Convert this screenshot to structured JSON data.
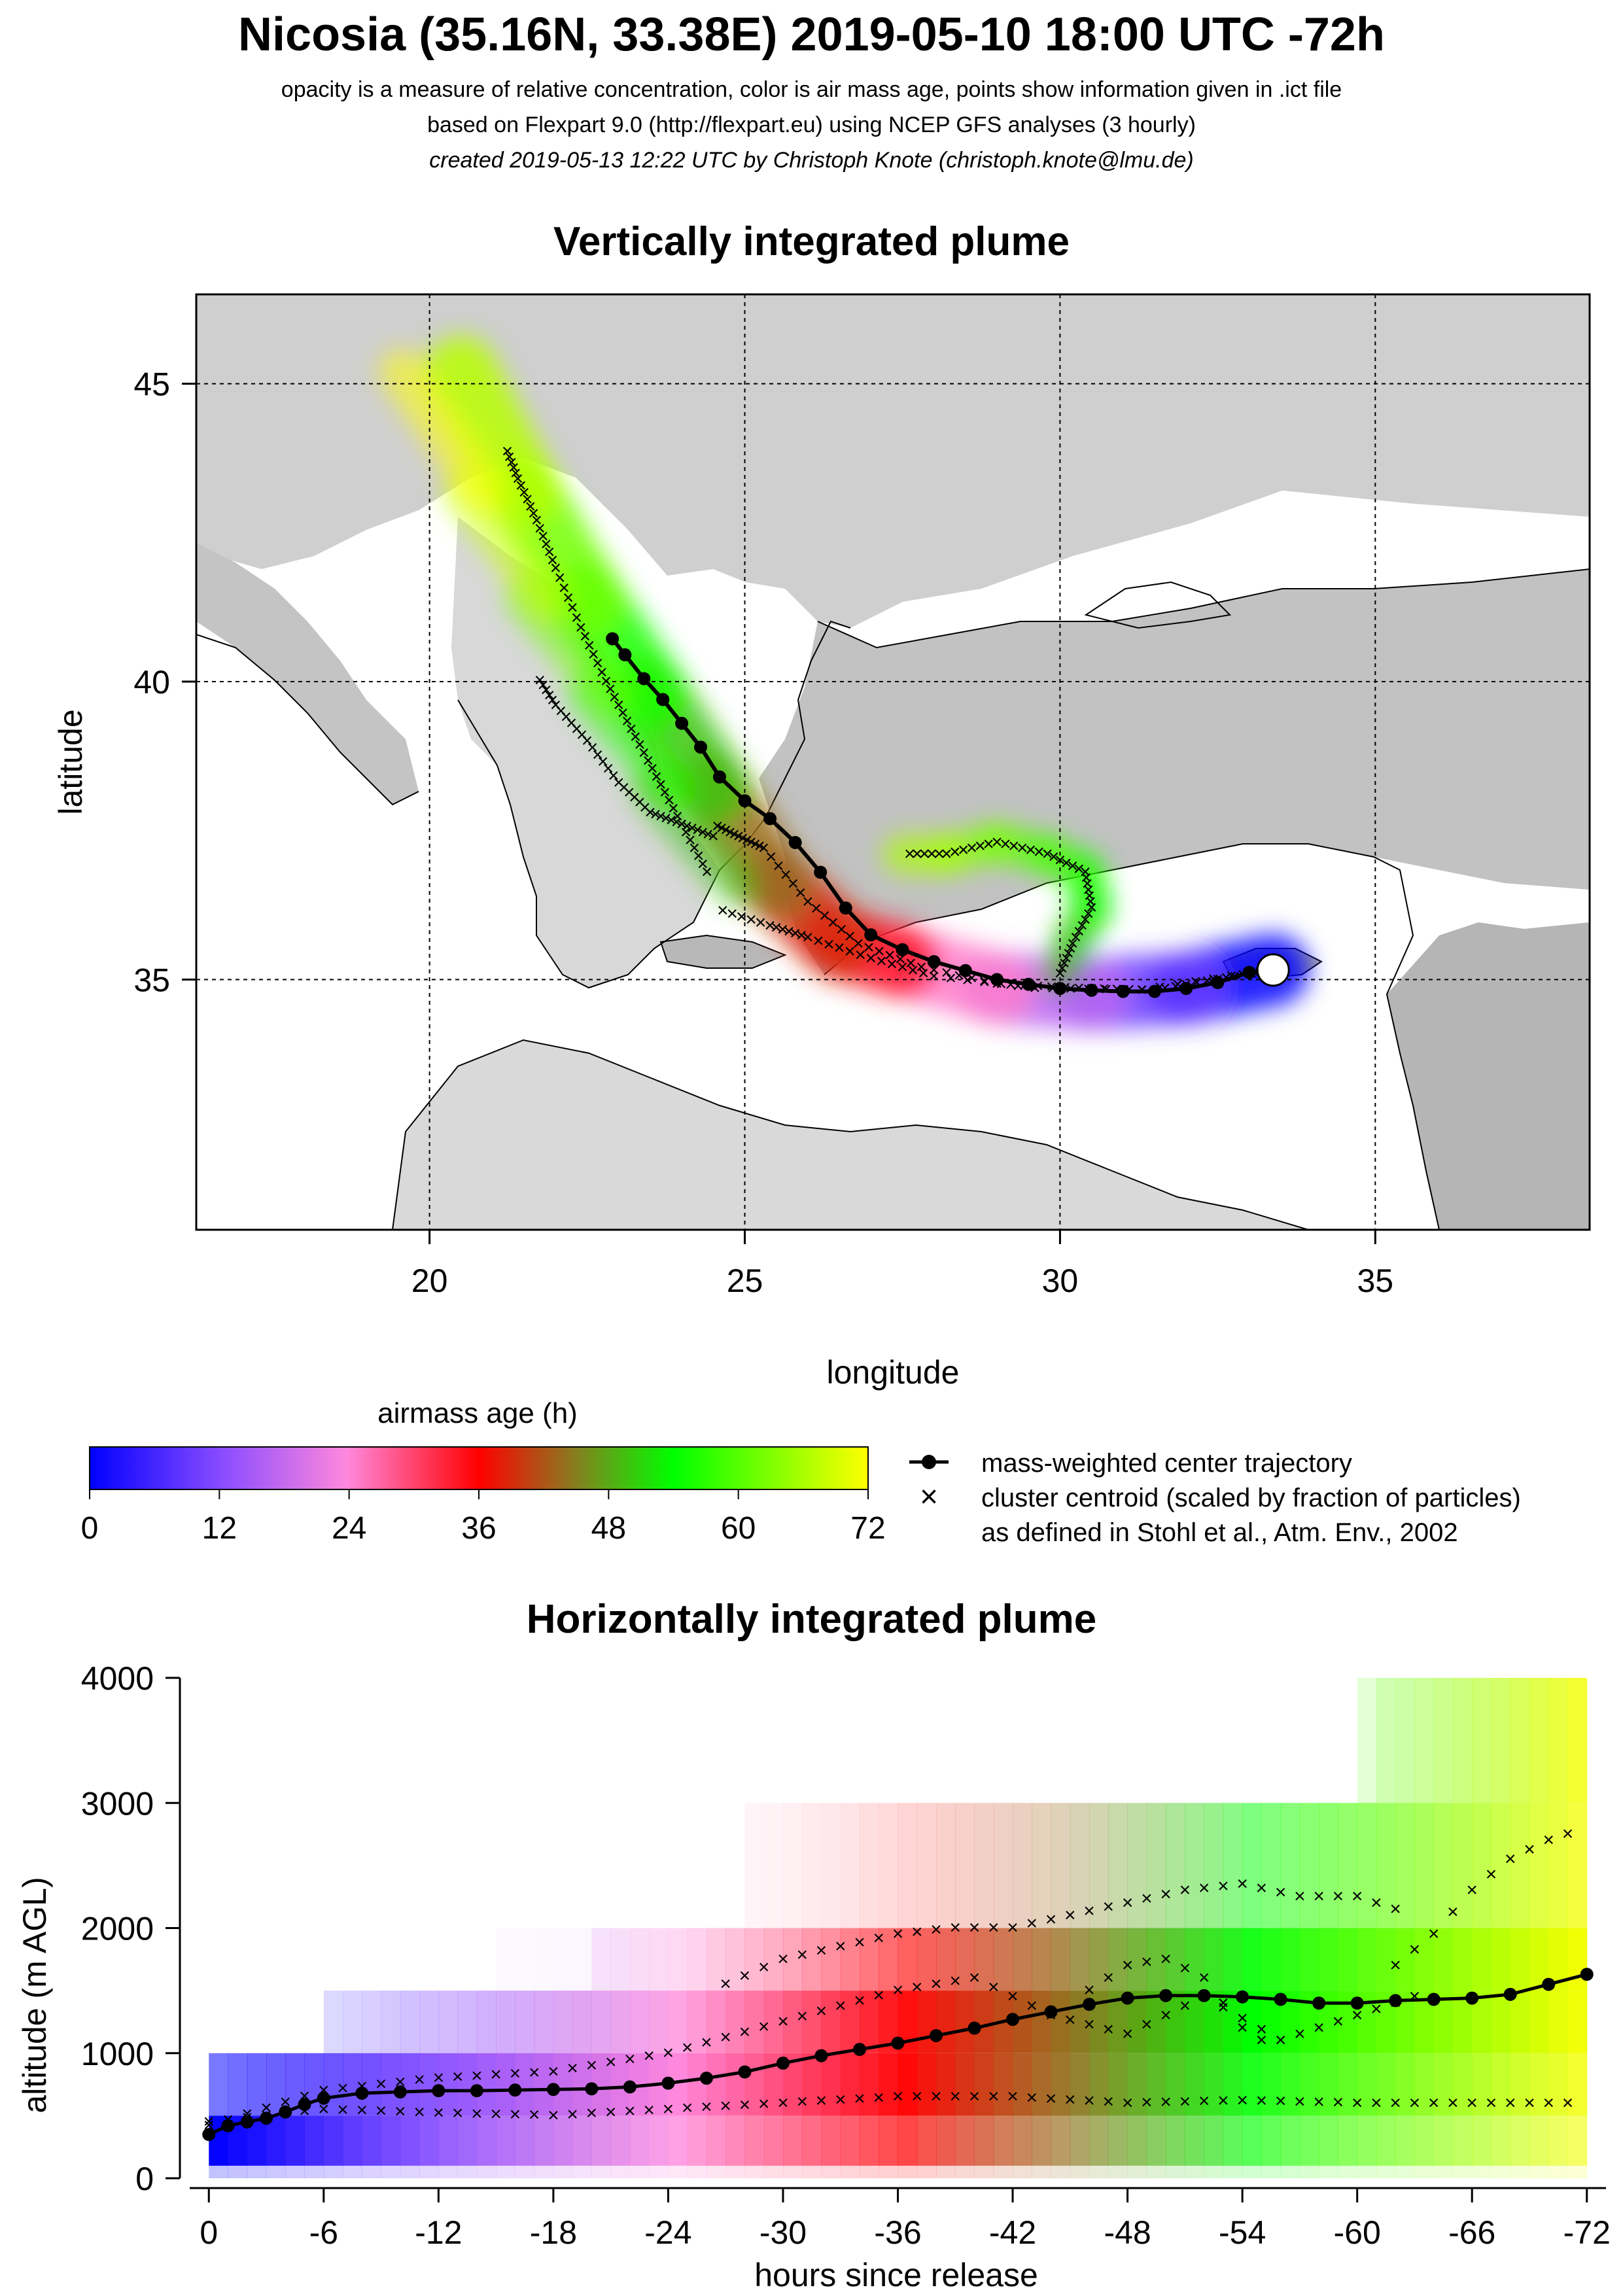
{
  "header": {
    "title": "Nicosia (35.16N, 33.38E) 2019-05-10 18:00 UTC -72h",
    "subtitle_1": "opacity is a measure of relative concentration, color is air mass age, points show information given in .ict file",
    "subtitle_2": "based on Flexpart 9.0 (http://flexpart.eu) using NCEP GFS analyses (3 hourly)",
    "subtitle_3": "created 2019-05-13 12:22 UTC by Christoph Knote (christoph.knote@lmu.de)"
  },
  "colors": {
    "mass_center": "#000000",
    "land": "#c8c8c8",
    "sea": "#ffffff",
    "age_0": "#0000ff",
    "age_36": "#ff0000",
    "age_54": "#00ff00",
    "age_72": "#ffff00"
  },
  "legend": {
    "colorbar_title": "airmass age (h)",
    "colorbar_ticks": [
      "0",
      "12",
      "24",
      "36",
      "48",
      "60",
      "72"
    ],
    "line_entry": "mass-weighted center trajectory",
    "cross_entry": "cluster centroid (scaled by fraction of particles)",
    "cross_entry_2": "as defined in Stohl et al., Atm. Env., 2002"
  },
  "chart_data": [
    {
      "type": "map",
      "title": "Vertically integrated plume",
      "xlabel": "longitude",
      "ylabel": "latitude",
      "xlim": [
        16.3,
        38.4
      ],
      "ylim": [
        30.8,
        46.5
      ],
      "xticks": [
        20,
        25,
        30,
        35
      ],
      "yticks": [
        35,
        40,
        45
      ],
      "grid": true,
      "release_point": {
        "lon": 33.38,
        "lat": 35.16,
        "label": "Nicosia"
      },
      "mass_weighted_center_trajectory": {
        "lon": [
          33.38,
          33.0,
          32.5,
          32.0,
          31.5,
          31.0,
          30.5,
          30.0,
          29.5,
          29.0,
          28.5,
          28.0,
          27.5,
          27.0,
          26.6,
          26.2,
          25.8,
          25.4,
          25.0,
          24.6,
          24.3,
          24.0,
          23.7,
          23.4,
          23.1,
          22.9
        ],
        "lat": [
          35.16,
          35.12,
          34.95,
          34.85,
          34.8,
          34.8,
          34.82,
          34.85,
          34.92,
          35.0,
          35.15,
          35.3,
          35.5,
          35.75,
          36.2,
          36.8,
          37.3,
          37.7,
          38.0,
          38.4,
          38.9,
          39.3,
          39.7,
          40.05,
          40.45,
          40.72
        ]
      },
      "plume_core": {
        "lon": [
          33.38,
          32.0,
          30.5,
          29.0,
          27.5,
          26.5,
          25.5,
          24.5,
          23.5,
          22.5,
          21.5,
          20.5
        ],
        "lat": [
          35.16,
          34.85,
          34.75,
          34.85,
          35.3,
          35.6,
          36.6,
          38.2,
          39.8,
          41.4,
          43.2,
          45.2
        ],
        "age_h": [
          0,
          9,
          17,
          25,
          34,
          39,
          44,
          50,
          56,
          62,
          67,
          72
        ]
      },
      "cluster_centroids": [
        {
          "lon": [
            33.3,
            32.5,
            31.5,
            30.3,
            29.0,
            27.8,
            26.8,
            26.0,
            25.3,
            24.9,
            24.5
          ],
          "lat": [
            35.15,
            35.0,
            34.82,
            34.85,
            34.92,
            35.2,
            35.6,
            36.3,
            37.2,
            37.4,
            37.6
          ]
        },
        {
          "lon": [
            33.0,
            31.3,
            29.6,
            28.0,
            27.0,
            26.0,
            25.4,
            24.5
          ],
          "lat": [
            35.1,
            34.82,
            34.85,
            35.05,
            35.35,
            35.7,
            35.9,
            36.2
          ]
        },
        {
          "lon": [
            30.0,
            30.2,
            30.5,
            30.4,
            29.8,
            29.0,
            28.2,
            27.5
          ],
          "lat": [
            35.1,
            35.6,
            36.2,
            36.8,
            37.1,
            37.3,
            37.1,
            37.1
          ]
        },
        {
          "lon": [
            24.4,
            24.0,
            23.6,
            23.2,
            22.8,
            22.4,
            22.0,
            21.7,
            21.4,
            21.2
          ],
          "lat": [
            36.8,
            37.6,
            38.4,
            39.2,
            40.0,
            40.9,
            41.9,
            42.7,
            43.4,
            43.95
          ]
        },
        {
          "lon": [
            24.5,
            24.0,
            23.5,
            23.0,
            22.5,
            22.0,
            21.7
          ],
          "lat": [
            37.4,
            37.6,
            37.8,
            38.3,
            39.0,
            39.6,
            40.1
          ]
        }
      ]
    },
    {
      "type": "heatmap",
      "title": "Horizontally integrated plume",
      "xlabel": "hours since release",
      "ylabel": "altitude (m AGL)",
      "xlim": [
        1,
        -73
      ],
      "ylim": [
        0,
        4000
      ],
      "xtick_labels": [
        "0",
        "-6",
        "-12",
        "-18",
        "-24",
        "-30",
        "-36",
        "-42",
        "-48",
        "-54",
        "-60",
        "-66",
        "-72"
      ],
      "ytick_labels": [
        "0",
        "1000",
        "2000",
        "3000",
        "4000"
      ],
      "altitude_bands_m": [
        [
          0,
          100
        ],
        [
          100,
          500
        ],
        [
          500,
          1000
        ],
        [
          1000,
          1500
        ],
        [
          1500,
          2000
        ],
        [
          2000,
          3000
        ],
        [
          3000,
          4000
        ]
      ],
      "mass_weighted_center_trajectory": {
        "hours": [
          0,
          -1,
          -2,
          -3,
          -4,
          -5,
          -6,
          -8,
          -10,
          -12,
          -14,
          -16,
          -18,
          -20,
          -22,
          -24,
          -26,
          -28,
          -30,
          -32,
          -34,
          -36,
          -38,
          -40,
          -42,
          -44,
          -46,
          -48,
          -50,
          -52,
          -54,
          -56,
          -58,
          -60,
          -62,
          -64,
          -66,
          -68,
          -70,
          -72
        ],
        "altitude_m": [
          350,
          420,
          450,
          480,
          530,
          590,
          640,
          680,
          690,
          700,
          700,
          705,
          710,
          715,
          730,
          760,
          800,
          850,
          920,
          980,
          1030,
          1080,
          1140,
          1200,
          1270,
          1330,
          1390,
          1440,
          1460,
          1460,
          1450,
          1430,
          1400,
          1400,
          1420,
          1430,
          1440,
          1470,
          1550,
          1630
        ]
      },
      "cluster_centroid_tracks": [
        {
          "hours": [
            0,
            -6,
            -12,
            -18,
            -24,
            -30,
            -36,
            -42,
            -48,
            -54,
            -60,
            -66,
            -72
          ],
          "altitude_m": [
            450,
            550,
            520,
            500,
            550,
            600,
            650,
            650,
            600,
            620,
            600,
            600,
            600
          ]
        },
        {
          "hours": [
            0,
            -6,
            -12,
            -18,
            -24,
            -30,
            -36,
            -40,
            -44,
            -48,
            -52,
            -56,
            -60,
            -64
          ],
          "altitude_m": [
            420,
            700,
            800,
            850,
            1000,
            1250,
            1500,
            1600,
            1300,
            1150,
            1450,
            1100,
            1300,
            1500
          ]
        },
        {
          "hours": [
            -27,
            -30,
            -33,
            -36,
            -39,
            -42,
            -45,
            -48,
            -51,
            -54,
            -57,
            -60,
            -63
          ],
          "altitude_m": [
            1550,
            1750,
            1850,
            1950,
            2000,
            2000,
            2100,
            2200,
            2300,
            2350,
            2250,
            2250,
            2100
          ]
        },
        {
          "hours": [
            -46,
            -48,
            -50,
            -52,
            -54,
            -56
          ],
          "altitude_m": [
            1500,
            1700,
            1750,
            1600,
            1200,
            1000
          ]
        },
        {
          "hours": [
            -62,
            -64,
            -66,
            -68,
            -70,
            -72
          ],
          "altitude_m": [
            1700,
            1950,
            2300,
            2550,
            2700,
            2800
          ]
        }
      ]
    }
  ]
}
